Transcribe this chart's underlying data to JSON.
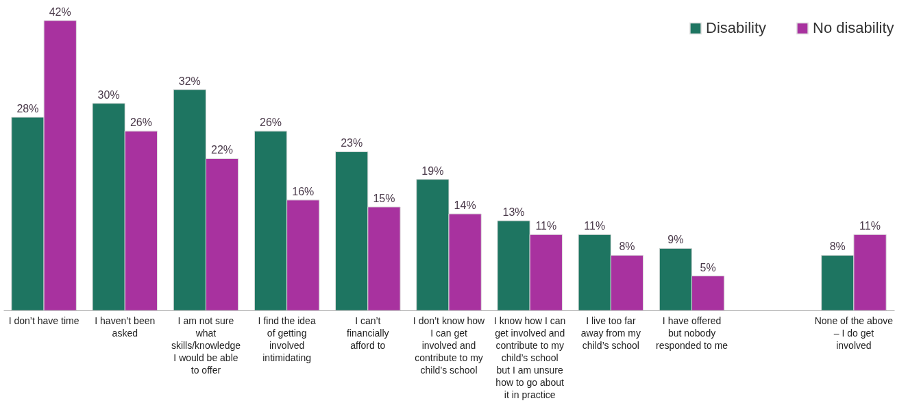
{
  "chart_data": {
    "type": "bar",
    "categories": [
      "I don’t have time",
      "I haven’t been asked",
      "I am not sure what skills/knowledge I would be able to offer",
      "I find the idea of getting involved intimidating",
      "I can’t financially afford to",
      "I don’t know how I can get involved and contribute to my child’s school",
      "I know how I can get involved and contribute to my child’s school but I am unsure how to go about it in practice",
      "I live too far away from my child’s school",
      "I have offered but nobody responded to me",
      null,
      "None of the above – I do get involved"
    ],
    "series": [
      {
        "name": "Disability",
        "color": "#1e7561",
        "values": [
          28,
          30,
          32,
          26,
          23,
          19,
          13,
          11,
          9,
          null,
          8
        ],
        "value_labels": [
          "28%",
          "30%",
          "32%",
          "26%",
          "23%",
          "19%",
          "13%",
          "11%",
          "9%",
          null,
          "8%"
        ]
      },
      {
        "name": "No disability",
        "color": "#a8329f",
        "values": [
          42,
          26,
          22,
          16,
          15,
          14,
          11,
          8,
          5,
          null,
          11
        ],
        "value_labels": [
          "42%",
          "26%",
          "22%",
          "16%",
          "15%",
          "14%",
          "11%",
          "8%",
          "5%",
          null,
          "11%"
        ]
      }
    ],
    "legend": "top right",
    "grid": false
  }
}
